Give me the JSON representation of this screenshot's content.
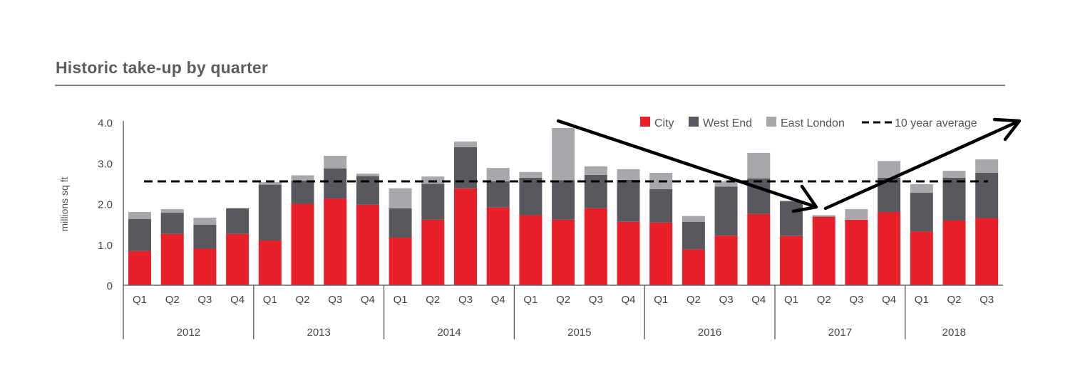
{
  "chart_data": {
    "type": "bar",
    "stacked": true,
    "title": "Historic take-up by quarter",
    "xlabel": "",
    "ylabel": "millions sq ft",
    "ylim": [
      0,
      4.0
    ],
    "yticks": [
      {
        "value": 0,
        "label": "0"
      },
      {
        "value": 1.0,
        "label": "1.0"
      },
      {
        "value": 2.0,
        "label": "2.0"
      },
      {
        "value": 3.0,
        "label": "3.0"
      },
      {
        "value": 4.0,
        "label": "4.0"
      }
    ],
    "grid": false,
    "legend_position": "top-right",
    "categories": [
      "Q1",
      "Q2",
      "Q3",
      "Q4",
      "Q1",
      "Q2",
      "Q3",
      "Q4",
      "Q1",
      "Q2",
      "Q3",
      "Q4",
      "Q1",
      "Q2",
      "Q3",
      "Q4",
      "Q1",
      "Q2",
      "Q3",
      "Q4",
      "Q1",
      "Q2",
      "Q3",
      "Q4",
      "Q1",
      "Q2",
      "Q3"
    ],
    "year_groups": [
      {
        "label": "2012",
        "count": 4
      },
      {
        "label": "2013",
        "count": 4
      },
      {
        "label": "2014",
        "count": 4
      },
      {
        "label": "2015",
        "count": 4
      },
      {
        "label": "2016",
        "count": 4
      },
      {
        "label": "2017",
        "count": 4
      },
      {
        "label": "2018",
        "count": 3
      }
    ],
    "series": [
      {
        "name": "City",
        "color": "#e8202a",
        "values": [
          0.84,
          1.26,
          0.9,
          1.26,
          1.1,
          2.0,
          2.13,
          1.98,
          1.17,
          1.61,
          2.38,
          1.91,
          1.72,
          1.61,
          1.89,
          1.56,
          1.54,
          0.88,
          1.22,
          1.75,
          1.21,
          1.68,
          1.61,
          1.8,
          1.32,
          1.59,
          1.65
        ]
      },
      {
        "name": "West End",
        "color": "#58595e",
        "values": [
          0.79,
          0.52,
          0.59,
          0.63,
          1.37,
          0.57,
          0.74,
          0.7,
          0.72,
          0.88,
          1.01,
          0.64,
          0.92,
          0.97,
          0.82,
          1.03,
          0.82,
          0.68,
          1.2,
          0.87,
          0.85,
          0.01,
          0.0,
          0.84,
          0.95,
          1.05,
          1.11
        ]
      },
      {
        "name": "East London",
        "color": "#a6a8ab",
        "values": [
          0.17,
          0.09,
          0.17,
          0.0,
          0.06,
          0.13,
          0.31,
          0.06,
          0.49,
          0.18,
          0.14,
          0.33,
          0.14,
          1.28,
          0.21,
          0.26,
          0.4,
          0.14,
          0.13,
          0.63,
          0.02,
          0.03,
          0.26,
          0.41,
          0.21,
          0.17,
          0.33
        ]
      }
    ],
    "reference_line": {
      "name": "10 year average",
      "value": 2.55,
      "style": "dashed",
      "color": "#000000"
    },
    "annotations": [
      {
        "type": "hand-drawn-arrow",
        "description": "downward arrow from above 2015 Q2 to 2017 Q2"
      },
      {
        "type": "hand-drawn-arrow",
        "description": "upward arrow from 2017 Q2 to beyond 2018 Q3 at top-right"
      }
    ]
  },
  "legend": {
    "items": [
      {
        "label": "City",
        "swatch": "#e8202a"
      },
      {
        "label": "West End",
        "swatch": "#58595e"
      },
      {
        "label": "East London",
        "swatch": "#a6a8ab"
      }
    ],
    "line_label": "10 year average"
  }
}
